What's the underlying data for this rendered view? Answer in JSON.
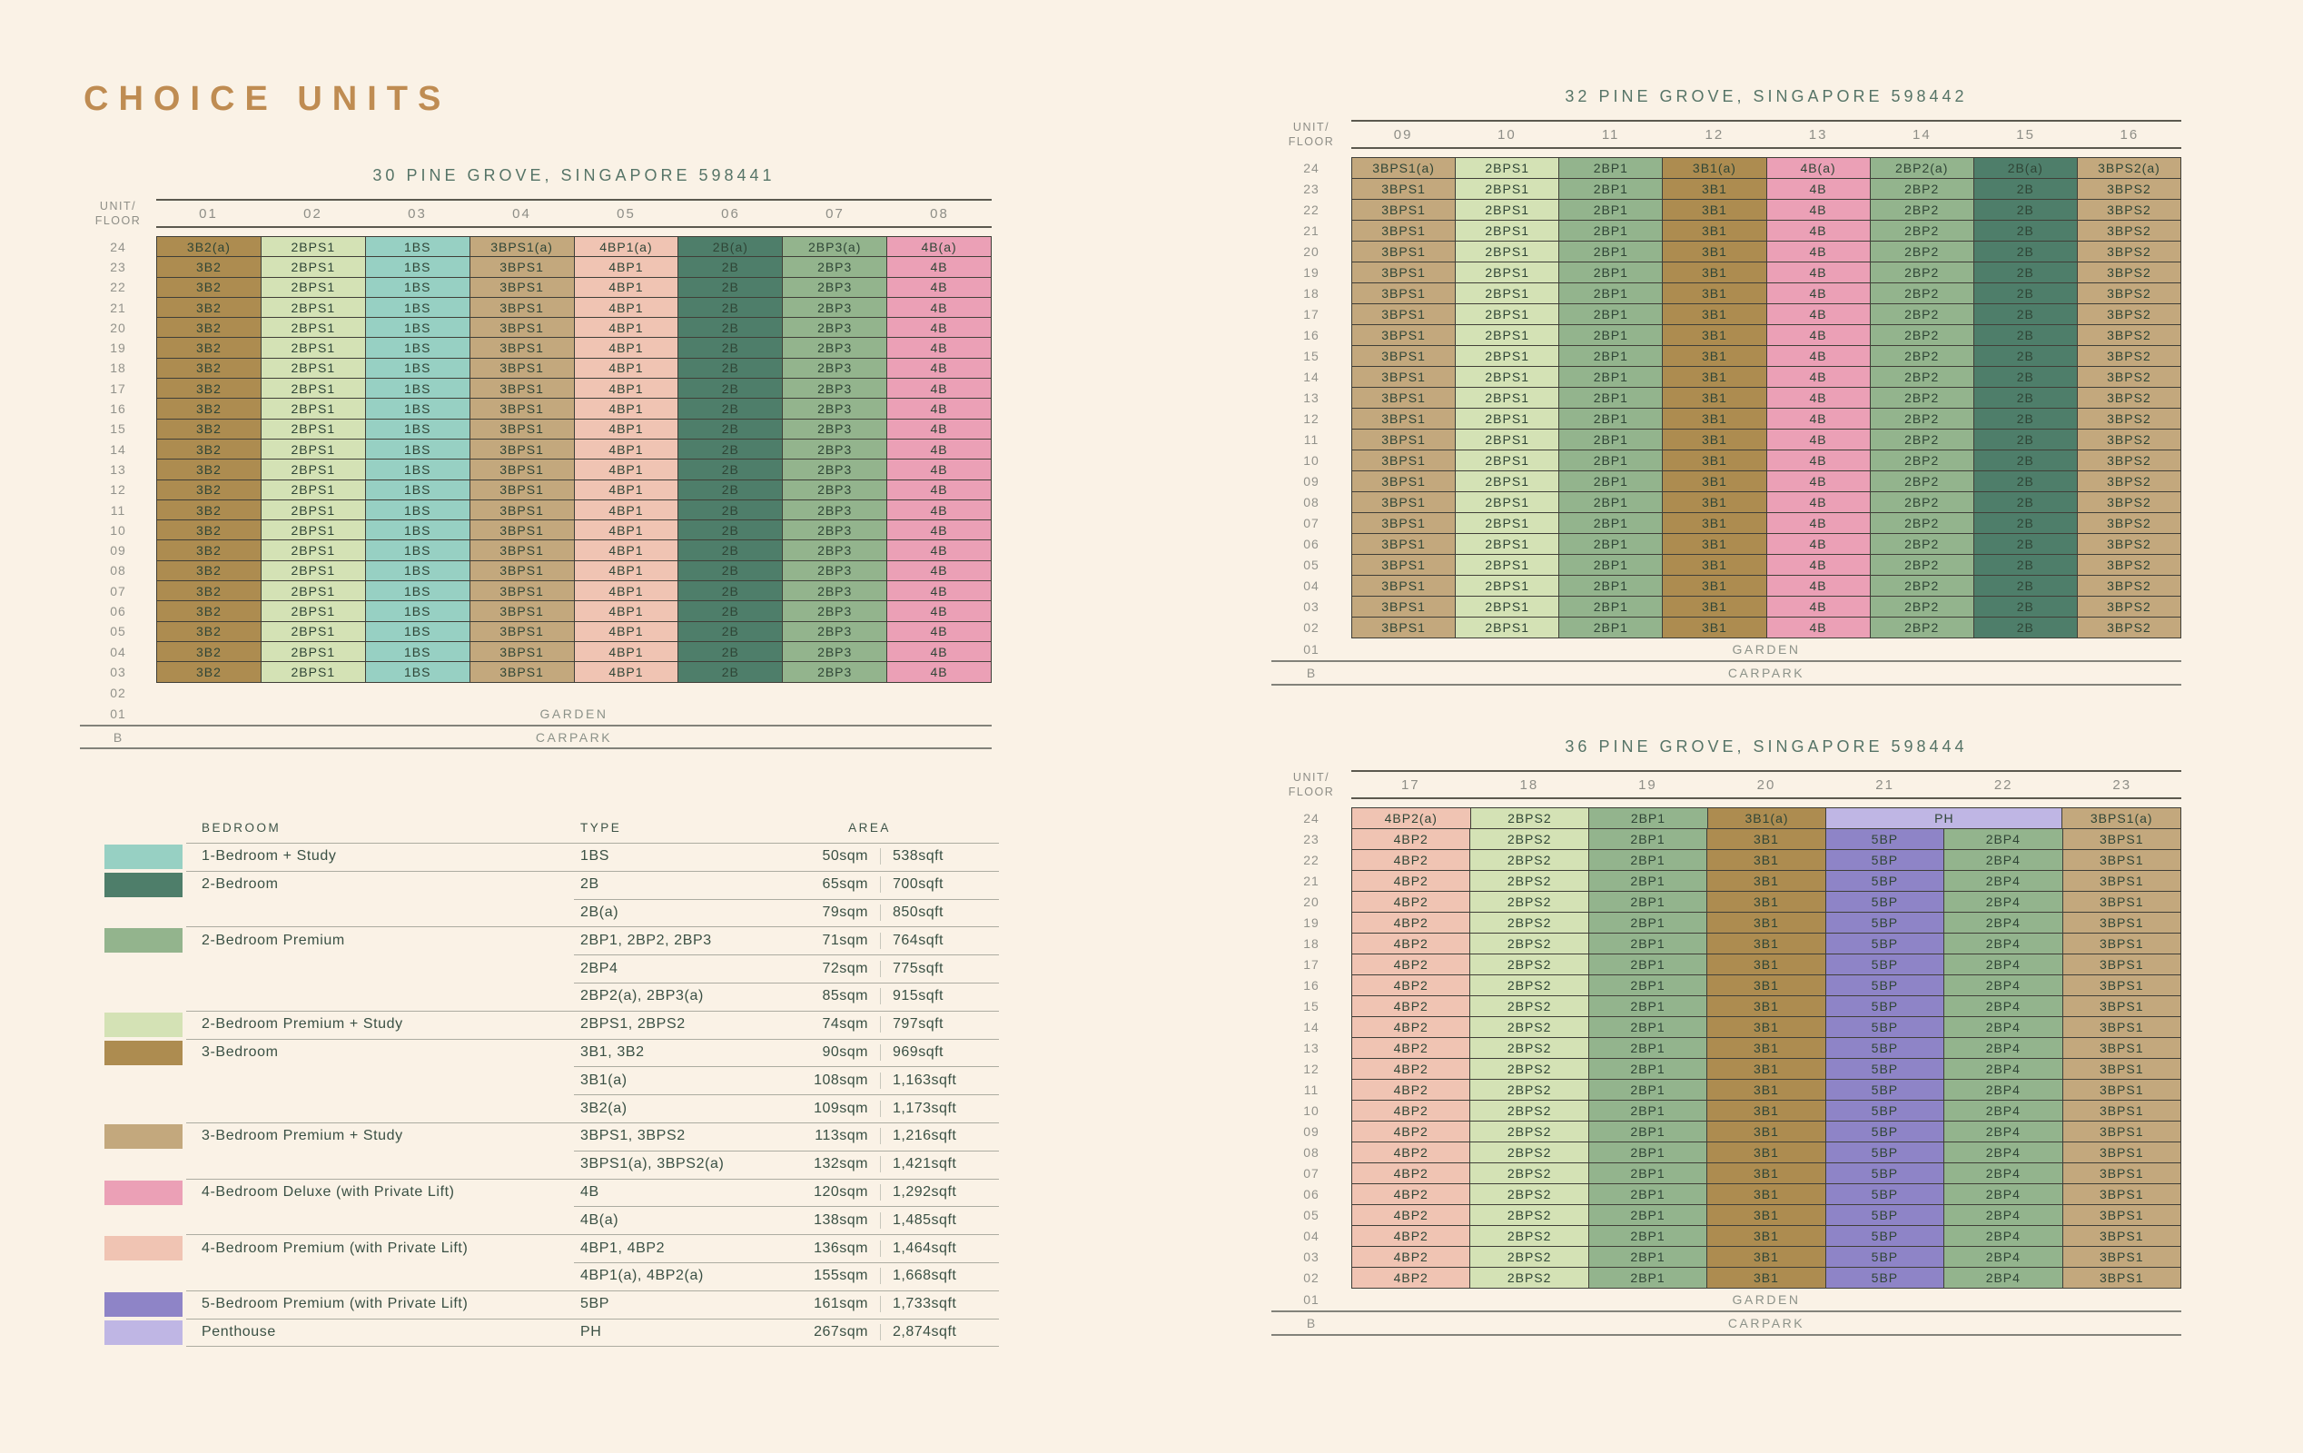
{
  "page": {
    "title": "CHOICE UNITS"
  },
  "labels": {
    "unit": "UNIT/",
    "floor": "FLOOR"
  },
  "colors": {
    "1BS": "#97D0C3",
    "2B": "#4E7E6A",
    "2BP": "#93B48D",
    "2BPS": "#D4E2B5",
    "3B": "#AD8C50",
    "3BPS": "#C3A87D",
    "4B": "#EBA0B6",
    "4BP": "#F0C4B3",
    "5BP": "#8E84C7",
    "PH": "#BFB6E4"
  },
  "buildings": [
    {
      "title": "30 PINE GROVE, SINGAPORE 598441",
      "columns": [
        "01",
        "02",
        "03",
        "04",
        "05",
        "06",
        "07",
        "08"
      ],
      "floors": [
        "24",
        "23",
        "22",
        "21",
        "20",
        "19",
        "18",
        "17",
        "16",
        "15",
        "14",
        "13",
        "12",
        "11",
        "10",
        "09",
        "08",
        "07",
        "06",
        "05",
        "04",
        "03"
      ],
      "top_cells": [
        {
          "label": "3B2(a)",
          "color": "3B",
          "span": 1
        },
        {
          "label": "2BPS1",
          "color": "2BPS",
          "span": 1
        },
        {
          "label": "1BS",
          "color": "1BS",
          "span": 1
        },
        {
          "label": "3BPS1(a)",
          "color": "3BPS",
          "span": 1
        },
        {
          "label": "4BP1(a)",
          "color": "4BP",
          "span": 1
        },
        {
          "label": "2B(a)",
          "color": "2B",
          "span": 1
        },
        {
          "label": "2BP3(a)",
          "color": "2BP",
          "span": 1
        },
        {
          "label": "4B(a)",
          "color": "4B",
          "span": 1
        }
      ],
      "stacks": [
        {
          "type": "3B2",
          "color": "3B"
        },
        {
          "type": "2BPS1",
          "color": "2BPS"
        },
        {
          "type": "1BS",
          "color": "1BS"
        },
        {
          "type": "3BPS1",
          "color": "3BPS"
        },
        {
          "type": "4BP1",
          "color": "4BP"
        },
        {
          "type": "2B",
          "color": "2B"
        },
        {
          "type": "2BP3",
          "color": "2BP"
        },
        {
          "type": "4B",
          "color": "4B"
        }
      ],
      "bottom_rows": [
        {
          "floor": "02",
          "label": "",
          "rule": false
        },
        {
          "floor": "01",
          "label": "GARDEN",
          "rule": true
        },
        {
          "floor": "B",
          "label": "CARPARK",
          "rule": true
        }
      ]
    },
    {
      "title": "32 PINE GROVE, SINGAPORE 598442",
      "columns": [
        "09",
        "10",
        "11",
        "12",
        "13",
        "14",
        "15",
        "16"
      ],
      "floors": [
        "24",
        "23",
        "22",
        "21",
        "20",
        "19",
        "18",
        "17",
        "16",
        "15",
        "14",
        "13",
        "12",
        "11",
        "10",
        "09",
        "08",
        "07",
        "06",
        "05",
        "04",
        "03",
        "02"
      ],
      "top_cells": [
        {
          "label": "3BPS1(a)",
          "color": "3BPS",
          "span": 1
        },
        {
          "label": "2BPS1",
          "color": "2BPS",
          "span": 1
        },
        {
          "label": "2BP1",
          "color": "2BP",
          "span": 1
        },
        {
          "label": "3B1(a)",
          "color": "3B",
          "span": 1
        },
        {
          "label": "4B(a)",
          "color": "4B",
          "span": 1
        },
        {
          "label": "2BP2(a)",
          "color": "2BP",
          "span": 1
        },
        {
          "label": "2B(a)",
          "color": "2B",
          "span": 1
        },
        {
          "label": "3BPS2(a)",
          "color": "3BPS",
          "span": 1
        }
      ],
      "stacks": [
        {
          "type": "3BPS1",
          "color": "3BPS"
        },
        {
          "type": "2BPS1",
          "color": "2BPS"
        },
        {
          "type": "2BP1",
          "color": "2BP"
        },
        {
          "type": "3B1",
          "color": "3B"
        },
        {
          "type": "4B",
          "color": "4B"
        },
        {
          "type": "2BP2",
          "color": "2BP"
        },
        {
          "type": "2B",
          "color": "2B"
        },
        {
          "type": "3BPS2",
          "color": "3BPS"
        }
      ],
      "bottom_rows": [
        {
          "floor": "01",
          "label": "GARDEN",
          "rule": true
        },
        {
          "floor": "B",
          "label": "CARPARK",
          "rule": true
        }
      ]
    },
    {
      "title": "36 PINE GROVE, SINGAPORE 598444",
      "columns": [
        "17",
        "18",
        "19",
        "20",
        "21",
        "22",
        "23"
      ],
      "floors": [
        "24",
        "23",
        "22",
        "21",
        "20",
        "19",
        "18",
        "17",
        "16",
        "15",
        "14",
        "13",
        "12",
        "11",
        "10",
        "09",
        "08",
        "07",
        "06",
        "05",
        "04",
        "03",
        "02"
      ],
      "top_cells": [
        {
          "label": "4BP2(a)",
          "color": "4BP",
          "span": 1
        },
        {
          "label": "2BPS2",
          "color": "2BPS",
          "span": 1
        },
        {
          "label": "2BP1",
          "color": "2BP",
          "span": 1
        },
        {
          "label": "3B1(a)",
          "color": "3B",
          "span": 1
        },
        {
          "label": "PH",
          "color": "PH",
          "span": 2
        },
        {
          "label": "3BPS1(a)",
          "color": "3BPS",
          "span": 1
        }
      ],
      "stacks": [
        {
          "type": "4BP2",
          "color": "4BP"
        },
        {
          "type": "2BPS2",
          "color": "2BPS"
        },
        {
          "type": "2BP1",
          "color": "2BP"
        },
        {
          "type": "3B1",
          "color": "3B"
        },
        {
          "type": "5BP",
          "color": "5BP"
        },
        {
          "type": "2BP4",
          "color": "2BP"
        },
        {
          "type": "3BPS1",
          "color": "3BPS"
        }
      ],
      "bottom_rows": [
        {
          "floor": "01",
          "label": "GARDEN",
          "rule": true
        },
        {
          "floor": "B",
          "label": "CARPARK",
          "rule": true
        }
      ]
    }
  ],
  "legend": {
    "headers": {
      "bedroom": "BEDROOM",
      "type": "TYPE",
      "area": "AREA"
    },
    "rows": [
      {
        "swatch": "1BS",
        "bedroom": "1-Bedroom + Study",
        "type": "1BS",
        "sqm": "50sqm",
        "sqft": "538sqft",
        "sep": "major"
      },
      {
        "swatch": "2B",
        "bedroom": "2-Bedroom",
        "type": "2B",
        "sqm": "65sqm",
        "sqft": "700sqft",
        "sep": "major"
      },
      {
        "bedroom": "",
        "type": "2B(a)",
        "sqm": "79sqm",
        "sqft": "850sqft",
        "sep": "minor"
      },
      {
        "swatch": "2BP",
        "bedroom": "2-Bedroom Premium",
        "type": "2BP1, 2BP2, 2BP3",
        "sqm": "71sqm",
        "sqft": "764sqft",
        "sep": "major"
      },
      {
        "bedroom": "",
        "type": "2BP4",
        "sqm": "72sqm",
        "sqft": "775sqft",
        "sep": "minor"
      },
      {
        "bedroom": "",
        "type": "2BP2(a), 2BP3(a)",
        "sqm": "85sqm",
        "sqft": "915sqft",
        "sep": "minor"
      },
      {
        "swatch": "2BPS",
        "bedroom": "2-Bedroom Premium + Study",
        "type": "2BPS1, 2BPS2",
        "sqm": "74sqm",
        "sqft": "797sqft",
        "sep": "major"
      },
      {
        "swatch": "3B",
        "bedroom": "3-Bedroom",
        "type": "3B1, 3B2",
        "sqm": "90sqm",
        "sqft": "969sqft",
        "sep": "major"
      },
      {
        "bedroom": "",
        "type": "3B1(a)",
        "sqm": "108sqm",
        "sqft": "1,163sqft",
        "sep": "minor"
      },
      {
        "bedroom": "",
        "type": "3B2(a)",
        "sqm": "109sqm",
        "sqft": "1,173sqft",
        "sep": "minor"
      },
      {
        "swatch": "3BPS",
        "bedroom": "3-Bedroom Premium + Study",
        "type": "3BPS1, 3BPS2",
        "sqm": "113sqm",
        "sqft": "1,216sqft",
        "sep": "major"
      },
      {
        "bedroom": "",
        "type": "3BPS1(a), 3BPS2(a)",
        "sqm": "132sqm",
        "sqft": "1,421sqft",
        "sep": "minor"
      },
      {
        "swatch": "4B",
        "bedroom": "4-Bedroom Deluxe (with Private Lift)",
        "type": "4B",
        "sqm": "120sqm",
        "sqft": "1,292sqft",
        "sep": "major"
      },
      {
        "bedroom": "",
        "type": "4B(a)",
        "sqm": "138sqm",
        "sqft": "1,485sqft",
        "sep": "minor"
      },
      {
        "swatch": "4BP",
        "bedroom": "4-Bedroom Premium (with Private Lift)",
        "type": "4BP1, 4BP2",
        "sqm": "136sqm",
        "sqft": "1,464sqft",
        "sep": "major"
      },
      {
        "bedroom": "",
        "type": "4BP1(a), 4BP2(a)",
        "sqm": "155sqm",
        "sqft": "1,668sqft",
        "sep": "minor"
      },
      {
        "swatch": "5BP",
        "bedroom": "5-Bedroom Premium (with Private Lift)",
        "type": "5BP",
        "sqm": "161sqm",
        "sqft": "1,733sqft",
        "sep": "major"
      },
      {
        "swatch": "PH",
        "bedroom": "Penthouse",
        "type": "PH",
        "sqm": "267sqm",
        "sqft": "2,874sqft",
        "sep": "major"
      }
    ]
  }
}
